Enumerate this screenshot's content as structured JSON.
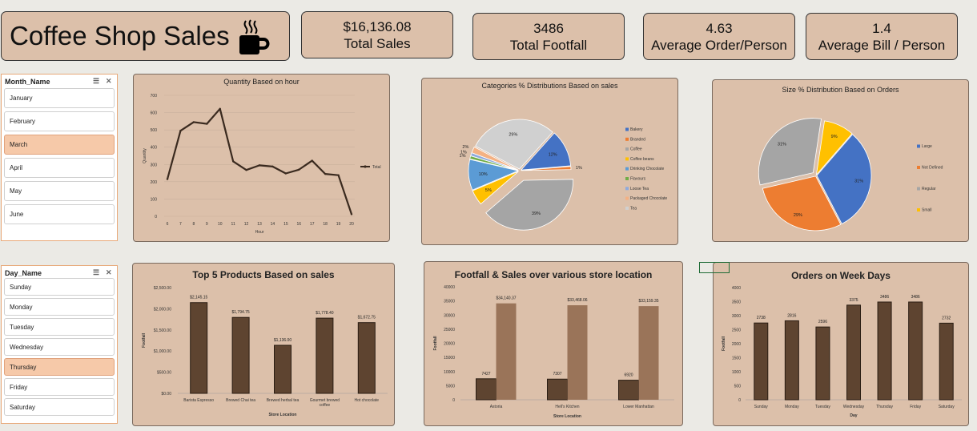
{
  "header": {
    "title": "Coffee Shop Sales",
    "mug_icon": "coffee-mug-icon"
  },
  "kpis": [
    {
      "value": "$16,136.08",
      "label": "Total Sales"
    },
    {
      "value": "3486",
      "label": "Total Footfall"
    },
    {
      "value": "4.63",
      "label": "Average Order/Person"
    },
    {
      "value": "1.4",
      "label": "Average Bill / Person"
    }
  ],
  "month_slicer": {
    "title": "Month_Name",
    "items": [
      "January",
      "February",
      "March",
      "April",
      "May",
      "June"
    ],
    "selected": "March"
  },
  "day_slicer": {
    "title": "Day_Name",
    "items": [
      "Sunday",
      "Monday",
      "Tuesday",
      "Wednesday",
      "Thursday",
      "Friday",
      "Saturday"
    ],
    "selected": "Thursday"
  },
  "colors": {
    "bar_dark": "#5e4430",
    "bar_light": "#9a7459",
    "line": "#3a2a1f",
    "panel_bg": "#dcc0aa"
  },
  "chart_data": [
    {
      "id": "hour",
      "type": "line",
      "title": "Quantity Based on hour",
      "xlabel": "Hour",
      "ylabel": "Quantity",
      "x": [
        6,
        7,
        8,
        9,
        10,
        11,
        12,
        13,
        14,
        15,
        16,
        17,
        18,
        19,
        20
      ],
      "y_ticks": [
        0,
        100,
        200,
        300,
        400,
        500,
        600,
        700
      ],
      "ylim": [
        0,
        700
      ],
      "series": [
        {
          "name": "Total",
          "values": [
            215,
            495,
            545,
            535,
            622,
            318,
            268,
            295,
            288,
            248,
            270,
            322,
            245,
            238,
            12
          ]
        }
      ],
      "legend": "right",
      "grid": true
    },
    {
      "id": "categories",
      "type": "pie",
      "title": "Categories % Distributions Based on sales",
      "slices": [
        {
          "name": "Bakery",
          "value": 12,
          "label": "12%",
          "color": "#4472c4"
        },
        {
          "name": "Branded",
          "value": 1,
          "label": "1%",
          "color": "#ed7d31"
        },
        {
          "name": "Coffee",
          "value": 39,
          "label": "39%",
          "color": "#a5a5a5"
        },
        {
          "name": "Coffee beans",
          "value": 5,
          "label": "5%",
          "color": "#ffc000"
        },
        {
          "name": "Drinking Chocolate",
          "value": 10,
          "label": "10%",
          "color": "#5b9bd5"
        },
        {
          "name": "Flavours",
          "value": 1,
          "label": "1%",
          "color": "#70ad47"
        },
        {
          "name": "Loose Tea",
          "value": 1,
          "label": "1%",
          "color": "#8faadc"
        },
        {
          "name": "Packaged Chocolate",
          "value": 2,
          "label": "2%",
          "color": "#f4b183"
        },
        {
          "name": "Tea",
          "value": 29,
          "label": "29%",
          "color": "#d0d0d0"
        }
      ],
      "legend": "right"
    },
    {
      "id": "size",
      "type": "pie",
      "title": "Size % Distribution Based on Orders",
      "slices": [
        {
          "name": "Large",
          "value": 31,
          "label": "31%",
          "color": "#4472c4"
        },
        {
          "name": "Not Defined",
          "value": 29,
          "label": "29%",
          "color": "#ed7d31"
        },
        {
          "name": "Regular",
          "value": 31,
          "label": "31%",
          "color": "#a5a5a5"
        },
        {
          "name": "Small",
          "value": 9,
          "label": "9%",
          "color": "#ffc000"
        }
      ],
      "legend": "right"
    },
    {
      "id": "products",
      "type": "bar",
      "title": "Top 5 Products Based on sales",
      "xlabel": "Store Location",
      "ylabel": "Footfall",
      "categories": [
        "Barista Espresso",
        "Brewed Chai tea",
        "Brewed herbal tea",
        "Gourmet brewed coffee",
        "Hot chocolate"
      ],
      "values": [
        2145.15,
        1794.75,
        1136.0,
        1778.4,
        1672.75
      ],
      "value_labels": [
        "$2,145.15",
        "$1,794.75",
        "$1,136.00",
        "$1,778.40",
        "$1,672.75"
      ],
      "y_ticks": [
        "$0.00",
        "$500.00",
        "$1,000.00",
        "$1,500.00",
        "$2,000.00",
        "$2,500.00"
      ],
      "ylim": [
        0,
        2500
      ]
    },
    {
      "id": "locations",
      "type": "bar",
      "title": "Footfall & Sales over various store location",
      "xlabel": "Store Location",
      "ylabel": "Footfall",
      "categories": [
        "Astoria",
        "Hell's Kitchen",
        "Lower Manhattan"
      ],
      "series": [
        {
          "values": [
            7427,
            7307,
            6920
          ],
          "labels": [
            "7427",
            "7307",
            "6920"
          ]
        },
        {
          "values": [
            34140.37,
            33468.06,
            33159.35
          ],
          "labels": [
            "$34,140.37",
            "$33,468.06",
            "$33,159.35"
          ]
        }
      ],
      "y_ticks": [
        0,
        5000,
        10000,
        15000,
        20000,
        25000,
        30000,
        35000,
        40000
      ],
      "ylim": [
        0,
        40000
      ]
    },
    {
      "id": "weekdays",
      "type": "bar",
      "title": "Orders on Week Days",
      "xlabel": "Day",
      "ylabel": "Footfall",
      "categories": [
        "Sunday",
        "Monday",
        "Tuesday",
        "Wednesday",
        "Thursday",
        "Friday",
        "Saturday"
      ],
      "values": [
        2738,
        2816,
        2596,
        3375,
        3486,
        3486,
        2732
      ],
      "y_ticks": [
        0,
        500,
        1000,
        1500,
        2000,
        2500,
        3000,
        3500,
        4000
      ],
      "ylim": [
        0,
        4000
      ]
    }
  ]
}
